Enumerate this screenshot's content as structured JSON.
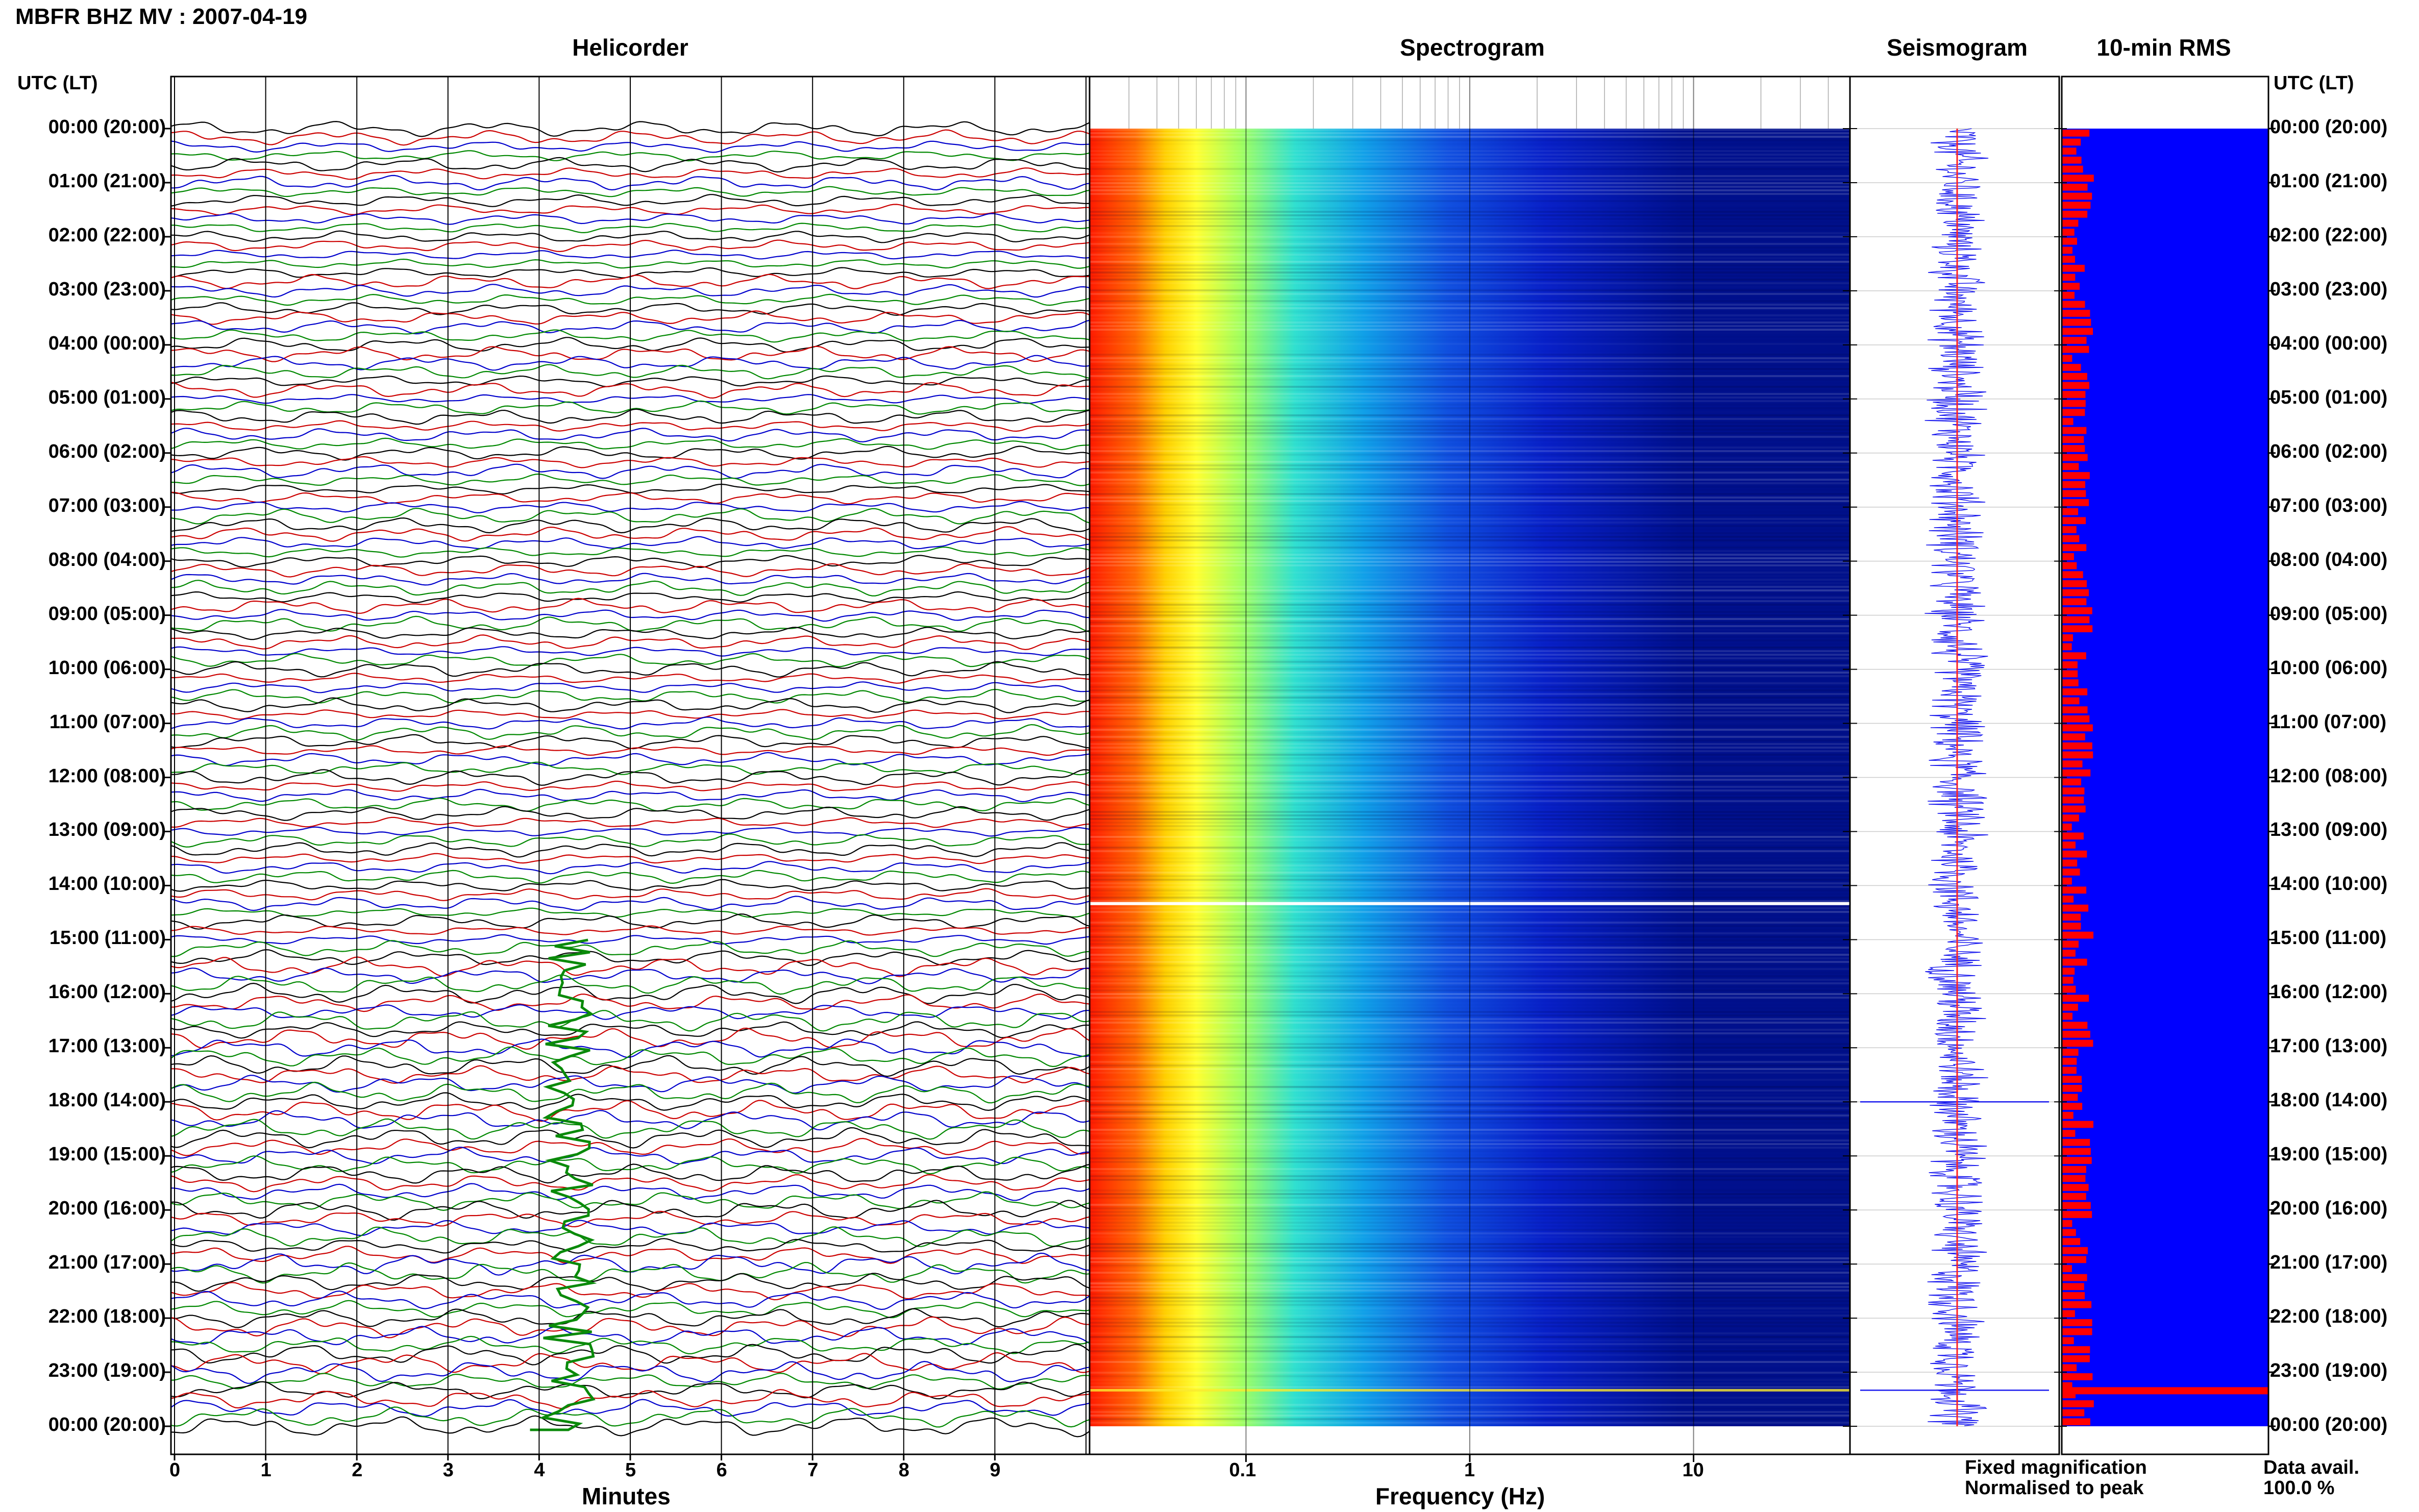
{
  "header": {
    "title": "MBFR BHZ MV : 2007-04-19",
    "panels": {
      "helicorder": "Helicorder",
      "spectrogram": "Spectrogram",
      "seismogram": "Seismogram",
      "rms": "10-min RMS"
    },
    "utc_lt_label": "UTC (LT)"
  },
  "time_labels": [
    "00:00 (20:00)",
    "01:00 (21:00)",
    "02:00 (22:00)",
    "03:00 (23:00)",
    "04:00 (00:00)",
    "05:00 (01:00)",
    "06:00 (02:00)",
    "07:00 (03:00)",
    "08:00 (04:00)",
    "09:00 (05:00)",
    "10:00 (06:00)",
    "11:00 (07:00)",
    "12:00 (08:00)",
    "13:00 (09:00)",
    "14:00 (10:00)",
    "15:00 (11:00)",
    "16:00 (12:00)",
    "17:00 (13:00)",
    "18:00 (14:00)",
    "19:00 (15:00)",
    "20:00 (16:00)",
    "21:00 (17:00)",
    "22:00 (18:00)",
    "23:00 (19:00)",
    "00:00 (20:00)"
  ],
  "legend": {
    "fixed": "Fixed magnification",
    "normalised": "Normalised to peak",
    "data_avail_label": "Data avail.",
    "data_avail_value": "100.0 %",
    "fixed_color": "#1010e0",
    "normalised_color": "#ff1010"
  },
  "colors": {
    "helicorder_traces": [
      "#000000",
      "#cc0000",
      "#0000cc",
      "#008800"
    ],
    "spectrogram_low": "#00008b",
    "spectrogram_high": "#ff0000",
    "rms_background": "#0000ff",
    "rms_bars": "#ff0000"
  },
  "chart_data": [
    {
      "type": "line",
      "name": "helicorder",
      "title": "Helicorder",
      "xlabel": "Minutes",
      "x_ticks": [
        "0",
        "1",
        "2",
        "3",
        "4",
        "5",
        "6",
        "7",
        "8",
        "9"
      ],
      "xlim": [
        0,
        10
      ],
      "rows_per_hour": 6,
      "event": {
        "start_time": "15:00",
        "end_time": "23:30",
        "minute_start": 3.9,
        "minute_end": 4.6
      }
    },
    {
      "type": "heatmap",
      "name": "spectrogram",
      "title": "Spectrogram",
      "xlabel": "Frequency (Hz)",
      "x_scale": "log",
      "x_ticks": [
        "0.1",
        "1",
        "10"
      ],
      "xlim": [
        0.02,
        50
      ],
      "gap_time": "14:20",
      "event_time": "23:20"
    },
    {
      "type": "line",
      "name": "seismogram",
      "title": "Seismogram",
      "spikes": [
        "18:00",
        "23:20"
      ]
    },
    {
      "type": "bar",
      "name": "rms",
      "title": "10-min RMS",
      "peak_time": "23:20",
      "peak_fraction": 1.0,
      "typical_fraction": 0.12
    }
  ]
}
